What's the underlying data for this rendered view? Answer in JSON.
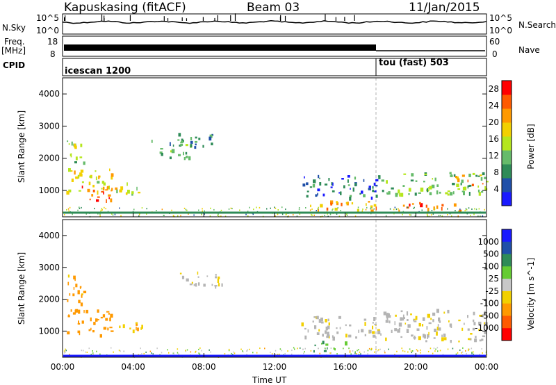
{
  "header": {
    "station": "Kapuskasing (fitACF)",
    "beam": "Beam 03",
    "date": "11/Jan/2015"
  },
  "strip_labels": {
    "nsky": "N.Sky",
    "freq_line1": "Freq.",
    "freq_line2": "[MHz]",
    "cpid": "CPID",
    "nsearch": "N.Search",
    "nave": "Nave",
    "nsky_ticks": [
      "10^5",
      "10^0"
    ],
    "freq_ticks": [
      "18",
      "8"
    ],
    "nsearch_ticks": [
      "10^5",
      "10^0"
    ],
    "nave_ticks": [
      "60",
      "0"
    ]
  },
  "cpid_modes": [
    "icescan 1200",
    "tou (fast) 503"
  ],
  "colors": {
    "power": [
      "#1a1aff",
      "#1f4fa8",
      "#2e8b57",
      "#66bb6a",
      "#b5e61d",
      "#f2d000",
      "#ff9900",
      "#ff5a00",
      "#ff0000"
    ],
    "velocity": [
      "#1a1aff",
      "#1f4fa8",
      "#2e8b57",
      "#66cc33",
      "#c8c8c8",
      "#f2d000",
      "#ff9900",
      "#ff5a00",
      "#ff0000"
    ],
    "ground_scatter": "#b4b4b4"
  },
  "chart_data": [
    {
      "type": "heatmap",
      "panel": "power",
      "ylabel": "Slant Range [km]",
      "ylim": [
        180,
        4500
      ],
      "yticks": [
        "1000",
        "2000",
        "3000",
        "4000"
      ],
      "xlim": [
        "00:00",
        "24:00"
      ],
      "colorbar": {
        "label": "Power [dB]",
        "ticks": [
          "4",
          "8",
          "12",
          "16",
          "20",
          "24",
          "28"
        ],
        "range": [
          0,
          30
        ]
      },
      "regions": [
        {
          "t0": 0.2,
          "t1": 2.8,
          "r0": 900,
          "r1": 1700,
          "level": 18
        },
        {
          "t0": 1.0,
          "t1": 3.0,
          "r0": 700,
          "r1": 1200,
          "level": 26
        },
        {
          "t0": 0.2,
          "t1": 1.2,
          "r0": 1800,
          "r1": 2600,
          "level": 14
        },
        {
          "t0": 3.0,
          "t1": 4.5,
          "r0": 900,
          "r1": 1300,
          "level": 16
        },
        {
          "t0": 5.0,
          "t1": 7.5,
          "r0": 2000,
          "r1": 2600,
          "level": 9
        },
        {
          "t0": 6.5,
          "t1": 8.5,
          "r0": 2400,
          "r1": 2800,
          "level": 10
        },
        {
          "t0": 13.5,
          "t1": 18.0,
          "r0": 800,
          "r1": 1500,
          "level": 6
        },
        {
          "t0": 14.0,
          "t1": 18.0,
          "r0": 400,
          "r1": 700,
          "level": 22
        },
        {
          "t0": 18.0,
          "t1": 24.0,
          "r0": 900,
          "r1": 1600,
          "level": 12
        },
        {
          "t0": 19.0,
          "t1": 22.5,
          "r0": 400,
          "r1": 650,
          "level": 24
        },
        {
          "t0": 22.0,
          "t1": 24.0,
          "r0": 1100,
          "r1": 1500,
          "level": 20
        }
      ]
    },
    {
      "type": "heatmap",
      "panel": "velocity",
      "ylabel": "Slant Range [km]",
      "ylim": [
        180,
        4500
      ],
      "yticks": [
        "1000",
        "2000",
        "3000",
        "4000"
      ],
      "xlabel": "Time UT",
      "xlim": [
        "00:00",
        "24:00"
      ],
      "xticks": [
        "00:00",
        "04:00",
        "08:00",
        "12:00",
        "16:00",
        "20:00",
        "00:00"
      ],
      "colorbar": {
        "label": "Velocity [m s^-1]",
        "ticks": [
          "1000",
          "500",
          "100",
          "25",
          "-25",
          "-100",
          "-500",
          "-1000"
        ]
      },
      "regions": [
        {
          "t0": 0.2,
          "t1": 2.8,
          "r0": 900,
          "r1": 1700,
          "velocity": -300
        },
        {
          "t0": 0.2,
          "t1": 1.2,
          "r0": 1800,
          "r1": 2800,
          "velocity": -150
        },
        {
          "t0": 3.0,
          "t1": 4.5,
          "r0": 900,
          "r1": 1300,
          "velocity": -80
        },
        {
          "t0": 6.5,
          "t1": 9.0,
          "r0": 2400,
          "r1": 2900,
          "velocity": 0
        },
        {
          "t0": 13.5,
          "t1": 18.0,
          "r0": 800,
          "r1": 1500,
          "velocity": 0
        },
        {
          "t0": 18.0,
          "t1": 24.0,
          "r0": 700,
          "r1": 1700,
          "velocity": 0
        },
        {
          "t0": 14.0,
          "t1": 16.0,
          "r0": 400,
          "r1": 700,
          "velocity": 80
        }
      ]
    }
  ]
}
